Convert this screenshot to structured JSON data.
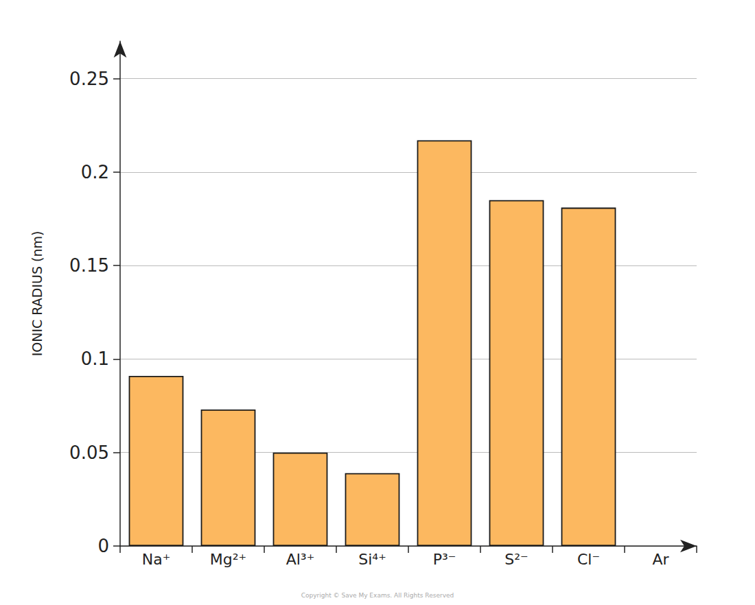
{
  "chart_data": {
    "type": "bar",
    "ylabel": "IONIC RADIUS (nm)",
    "categories": [
      "Na⁺",
      "Mg²⁺",
      "Al³⁺",
      "Si⁴⁺",
      "P³⁻",
      "S²⁻",
      "Cl⁻",
      "Ar"
    ],
    "values": [
      0.091,
      0.073,
      0.05,
      0.039,
      0.217,
      0.185,
      0.181,
      null
    ],
    "color": "#fcb860",
    "ylim": [
      0,
      0.27
    ],
    "yticks": [
      0,
      0.05,
      0.1,
      0.15,
      0.2,
      0.25
    ],
    "grid": true,
    "annotations": [
      "Copyright © Save My Exams. All Rights Reserved"
    ]
  }
}
